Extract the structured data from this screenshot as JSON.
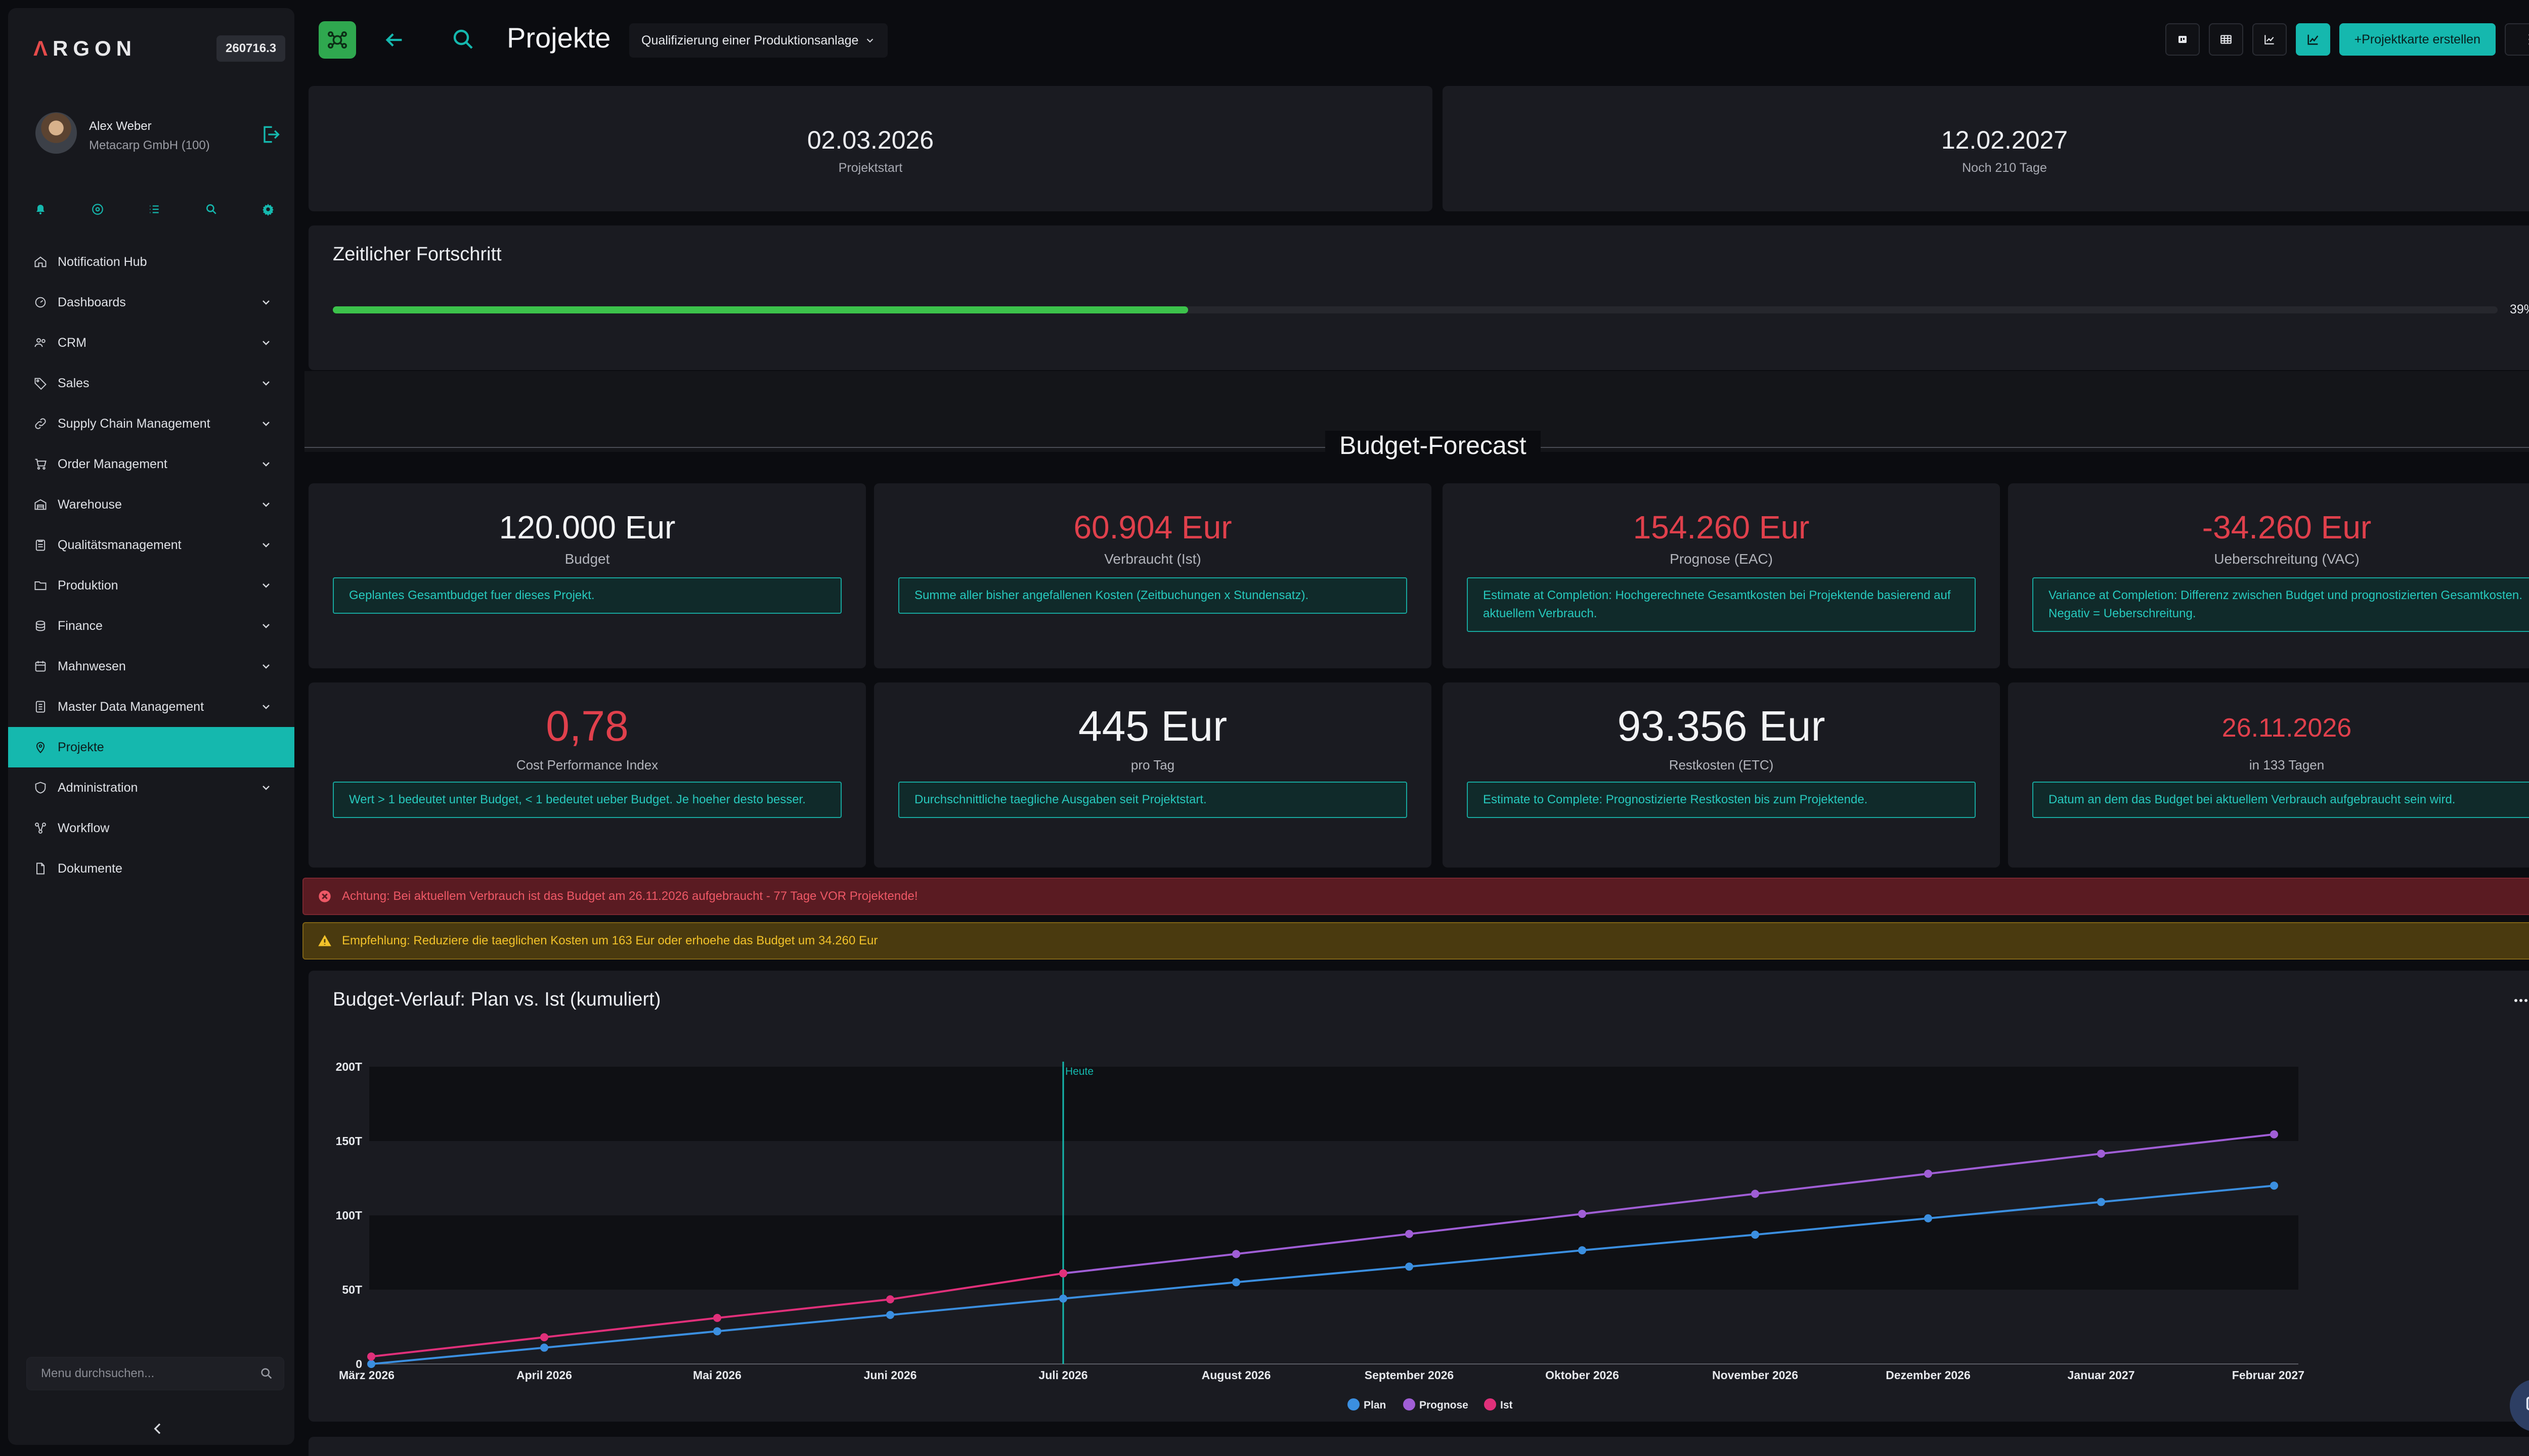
{
  "sidebar": {
    "logo": {
      "first": "Λ",
      "rest": "RGON"
    },
    "version": "260716.3",
    "user": {
      "name": "Alex Weber",
      "company": "Metacarp GmbH (100)"
    },
    "quick_icons": [
      "bell-icon",
      "help-circle-icon",
      "list-icon",
      "search-icon",
      "gear-icon"
    ],
    "items": [
      {
        "label": "Notification Hub",
        "icon": "home-icon",
        "expandable": false
      },
      {
        "label": "Dashboards",
        "icon": "dashboard-icon",
        "expandable": true
      },
      {
        "label": "CRM",
        "icon": "users-icon",
        "expandable": true
      },
      {
        "label": "Sales",
        "icon": "tag-icon",
        "expandable": true
      },
      {
        "label": "Supply Chain Management",
        "icon": "link-icon",
        "expandable": true
      },
      {
        "label": "Order Management",
        "icon": "cart-icon",
        "expandable": true
      },
      {
        "label": "Warehouse",
        "icon": "warehouse-icon",
        "expandable": true
      },
      {
        "label": "Qualitätsmanagement",
        "icon": "clipboard-icon",
        "expandable": true
      },
      {
        "label": "Produktion",
        "icon": "folder-icon",
        "expandable": true
      },
      {
        "label": "Finance",
        "icon": "coins-icon",
        "expandable": true
      },
      {
        "label": "Mahnwesen",
        "icon": "calendar-icon",
        "expandable": true
      },
      {
        "label": "Master Data Management",
        "icon": "database-icon",
        "expandable": true
      },
      {
        "label": "Projekte",
        "icon": "pin-icon",
        "expandable": false,
        "active": true
      },
      {
        "label": "Administration",
        "icon": "shield-icon",
        "expandable": true
      },
      {
        "label": "Workflow",
        "icon": "workflow-icon",
        "expandable": false
      },
      {
        "label": "Dokumente",
        "icon": "document-icon",
        "expandable": false
      }
    ],
    "search_placeholder": "Menu durchsuchen..."
  },
  "topbar": {
    "title": "Projekte",
    "project_select": "Qualifizierung einer Produktionsanlage",
    "create_button": "+Projektkarte erstellen",
    "view_icons": [
      "kanban-icon",
      "table-icon",
      "gantt-icon",
      "chart-icon"
    ],
    "active_view": "chart-icon"
  },
  "dates": {
    "start": {
      "value": "02.03.2026",
      "label": "Projektstart"
    },
    "end": {
      "value": "12.02.2027",
      "label": "Noch 210 Tage"
    }
  },
  "progress": {
    "title": "Zeitlicher Fortschritt",
    "percent_label": "39%",
    "fraction": 0.395,
    "color": "#3cc24b"
  },
  "budget_section": {
    "title": "Budget-Forecast"
  },
  "kpis": [
    {
      "value": "120.000 Eur",
      "label": "Budget",
      "desc": "Geplantes Gesamtbudget fuer dieses Projekt.",
      "red": false
    },
    {
      "value": "60.904 Eur",
      "label": "Verbraucht (Ist)",
      "desc": "Summe aller bisher angefallenen Kosten (Zeitbuchungen x Stundensatz).",
      "red": true
    },
    {
      "value": "154.260 Eur",
      "label": "Prognose (EAC)",
      "desc": "Estimate at Completion: Hochgerechnete Gesamtkosten bei Projektende basierend auf aktuellem Verbrauch.",
      "red": true
    },
    {
      "value": "-34.260 Eur",
      "label": "Ueberschreitung (VAC)",
      "desc": "Variance at Completion: Differenz zwischen Budget und prognostizierten Gesamtkosten. Negativ = Ueberschreitung.",
      "red": true
    },
    {
      "value": "0,78",
      "label": "Cost Performance Index",
      "desc": "Wert > 1 bedeutet unter Budget, < 1 bedeutet ueber Budget. Je hoeher desto besser.",
      "red": true
    },
    {
      "value": "445 Eur",
      "label": "pro Tag",
      "desc": "Durchschnittliche taegliche Ausgaben seit Projektstart.",
      "red": false
    },
    {
      "value": "93.356 Eur",
      "label": "Restkosten (ETC)",
      "desc": "Estimate to Complete: Prognostizierte Restkosten bis zum Projektende.",
      "red": false
    },
    {
      "value": "26.11.2026",
      "label": "in 133 Tagen",
      "desc": "Datum an dem das Budget bei aktuellem Verbrauch aufgebraucht sein wird.",
      "red": true
    }
  ],
  "alerts": {
    "danger": "Achtung: Bei aktuellem Verbrauch ist das Budget am 26.11.2026 aufgebraucht - 77 Tage VOR Projektende!",
    "warning": "Empfehlung: Reduziere die taeglichen Kosten um 163 Eur oder erhoehe das Budget um 34.260 Eur"
  },
  "chart_data": {
    "type": "line",
    "title": "Budget-Verlauf: Plan vs. Ist (kumuliert)",
    "categories": [
      "März 2026",
      "April 2026",
      "Mai 2026",
      "Juni 2026",
      "Juli 2026",
      "August 2026",
      "September 2026",
      "Oktober 2026",
      "November 2026",
      "Dezember 2026",
      "Januar 2027",
      "Februar 2027"
    ],
    "yticks": [
      {
        "v": 0,
        "label": "0"
      },
      {
        "v": 50000,
        "label": "50T"
      },
      {
        "v": 100000,
        "label": "100T"
      },
      {
        "v": 150000,
        "label": "150T"
      },
      {
        "v": 200000,
        "label": "200T"
      }
    ],
    "ylim": [
      0,
      200000
    ],
    "today": {
      "label": "Heute",
      "index": 4
    },
    "series": [
      {
        "name": "Plan",
        "color": "#3b8fe0",
        "values": [
          0,
          11000,
          22000,
          33000,
          44000,
          55000,
          65500,
          76500,
          87000,
          98000,
          109000,
          120000
        ]
      },
      {
        "name": "Prognose",
        "color": "#a05ed6",
        "values": [
          null,
          null,
          null,
          null,
          61000,
          74000,
          87500,
          101000,
          114500,
          128000,
          141500,
          154500
        ]
      },
      {
        "name": "Ist",
        "color": "#e0307a",
        "values": [
          5000,
          18000,
          31000,
          43500,
          61000,
          null,
          null,
          null,
          null,
          null,
          null,
          null
        ]
      }
    ],
    "legend": "bottom-center"
  }
}
